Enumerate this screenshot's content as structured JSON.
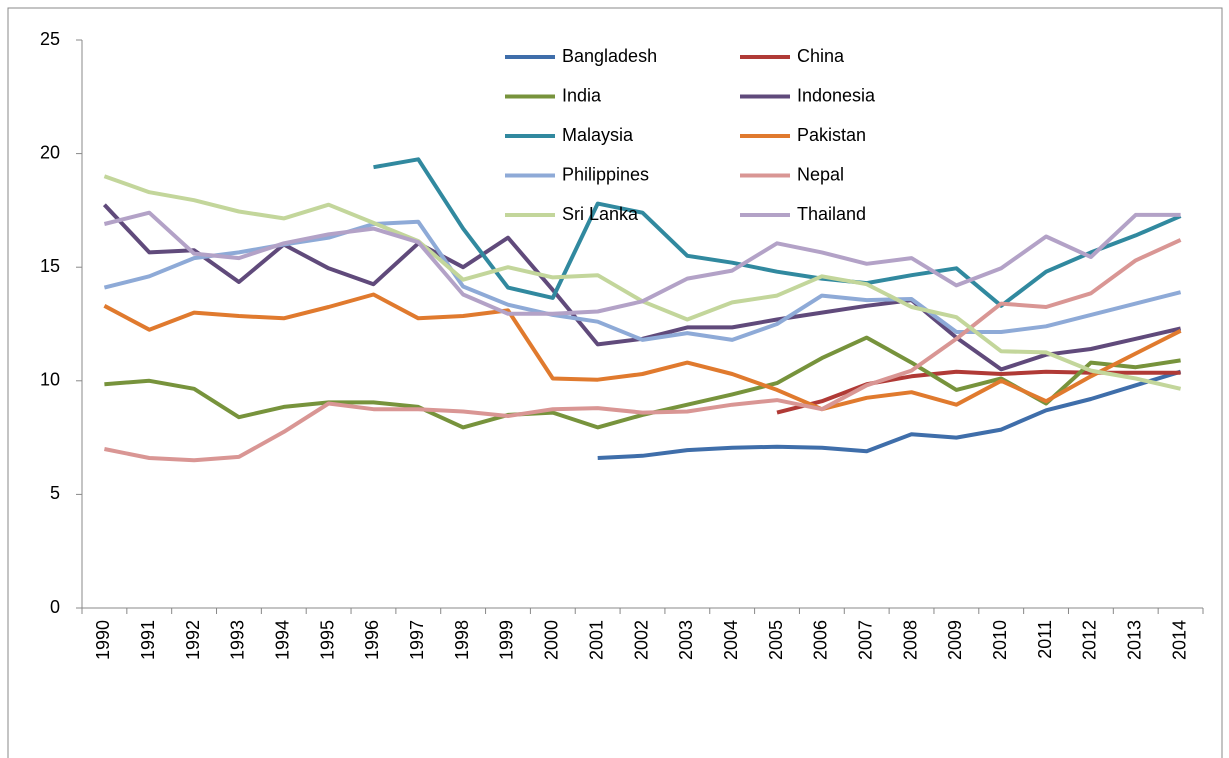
{
  "chart_data": {
    "type": "line",
    "categories": [
      "1990",
      "1991",
      "1992",
      "1993",
      "1994",
      "1995",
      "1996",
      "1997",
      "1998",
      "1999",
      "2000",
      "2001",
      "2002",
      "2003",
      "2004",
      "2005",
      "2006",
      "2007",
      "2008",
      "2009",
      "2010",
      "2011",
      "2012",
      "2013",
      "2014"
    ],
    "ylim": [
      0,
      25
    ],
    "yticks": [
      0,
      5,
      10,
      15,
      20,
      25
    ],
    "grid": false,
    "legend": "top",
    "series": [
      {
        "name": "Bangladesh",
        "color": "#3f6eaa",
        "values": [
          null,
          null,
          null,
          null,
          null,
          null,
          null,
          null,
          null,
          null,
          null,
          6.6,
          6.7,
          6.95,
          7.05,
          7.1,
          7.05,
          6.9,
          7.65,
          7.5,
          7.85,
          8.7,
          9.2,
          9.8,
          10.4
        ]
      },
      {
        "name": "China",
        "color": "#b03a36",
        "values": [
          null,
          null,
          null,
          null,
          null,
          null,
          null,
          null,
          null,
          null,
          null,
          null,
          null,
          null,
          null,
          8.6,
          9.1,
          9.85,
          10.2,
          10.4,
          10.3,
          10.4,
          10.35,
          10.35,
          10.35
        ]
      },
      {
        "name": "India",
        "color": "#77933c",
        "values": [
          9.85,
          10.0,
          9.65,
          8.4,
          8.85,
          9.05,
          9.05,
          8.85,
          7.95,
          8.5,
          8.6,
          7.95,
          8.5,
          8.95,
          9.4,
          9.9,
          11.0,
          11.9,
          10.8,
          9.6,
          10.1,
          9.0,
          10.8,
          10.6,
          10.9
        ]
      },
      {
        "name": "Indonesia",
        "color": "#604a7b",
        "values": [
          17.75,
          15.65,
          15.75,
          14.35,
          16.0,
          14.95,
          14.25,
          16.05,
          15.0,
          16.3,
          14.0,
          11.6,
          11.85,
          12.35,
          12.35,
          12.7,
          13.0,
          13.3,
          13.55,
          11.9,
          10.5,
          11.15,
          11.4,
          11.85,
          12.3
        ]
      },
      {
        "name": "Malaysia",
        "color": "#31899f",
        "values": [
          null,
          null,
          null,
          null,
          null,
          null,
          19.4,
          19.75,
          16.7,
          14.1,
          13.65,
          17.8,
          17.4,
          15.5,
          15.2,
          14.8,
          14.5,
          14.3,
          14.65,
          14.95,
          13.3,
          14.8,
          15.65,
          16.4,
          17.25
        ]
      },
      {
        "name": "Pakistan",
        "color": "#e07a2e",
        "values": [
          13.3,
          12.25,
          13.0,
          12.85,
          12.75,
          13.25,
          13.8,
          12.75,
          12.85,
          13.1,
          10.1,
          10.05,
          10.3,
          10.8,
          10.3,
          9.6,
          8.75,
          9.25,
          9.5,
          8.95,
          10.0,
          9.1,
          10.2,
          11.2,
          12.2
        ]
      },
      {
        "name": "Philippines",
        "color": "#8eaad7",
        "values": [
          14.1,
          14.6,
          15.4,
          15.65,
          16.0,
          16.3,
          16.9,
          17.0,
          14.15,
          13.35,
          12.9,
          12.6,
          11.8,
          12.1,
          11.8,
          12.5,
          13.75,
          13.55,
          13.6,
          12.15,
          12.15,
          12.4,
          12.9,
          13.4,
          13.9
        ]
      },
      {
        "name": "Nepal",
        "color": "#d99694",
        "values": [
          7.0,
          6.6,
          6.5,
          6.65,
          7.75,
          9.0,
          8.75,
          8.75,
          8.65,
          8.45,
          8.75,
          8.8,
          8.6,
          8.65,
          8.95,
          9.15,
          8.75,
          9.8,
          10.45,
          11.85,
          13.4,
          13.25,
          13.85,
          15.3,
          16.2
        ]
      },
      {
        "name": "Sri Lanka",
        "color": "#c3d69b",
        "values": [
          19.0,
          18.3,
          17.95,
          17.45,
          17.15,
          17.75,
          16.95,
          16.15,
          14.45,
          15.0,
          14.55,
          14.65,
          13.5,
          12.7,
          13.45,
          13.75,
          14.6,
          14.25,
          13.25,
          12.8,
          11.3,
          11.25,
          10.45,
          10.1,
          9.65
        ]
      },
      {
        "name": "Thailand",
        "color": "#b3a2c7",
        "values": [
          16.9,
          17.4,
          15.6,
          15.4,
          16.05,
          16.45,
          16.7,
          16.1,
          13.8,
          12.95,
          12.95,
          13.05,
          13.5,
          14.5,
          14.85,
          16.05,
          15.65,
          15.15,
          15.4,
          14.2,
          14.95,
          16.35,
          15.45,
          17.3,
          17.3
        ]
      }
    ]
  }
}
